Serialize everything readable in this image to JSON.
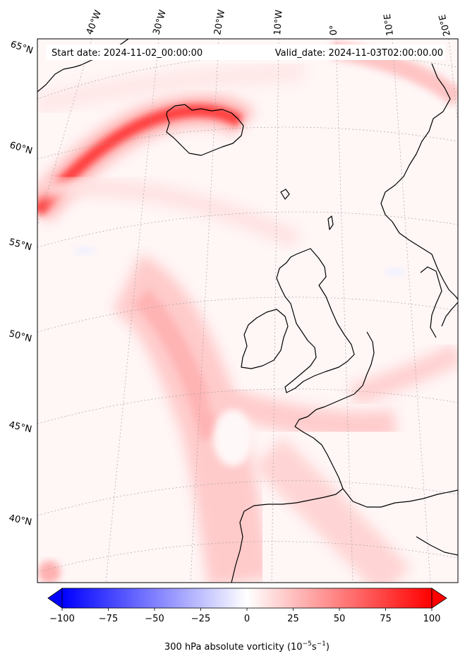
{
  "header": {
    "start_date": "Start date: 2024-11-02_00:00:00",
    "valid_date": "Valid_date: 2024-11-03T02:00:00.00"
  },
  "longitude_labels": [
    "40°W",
    "30°W",
    "20°W",
    "10°W",
    "0°",
    "10°E",
    "20°E"
  ],
  "latitude_labels": [
    "65°N",
    "60°N",
    "55°N",
    "50°N",
    "45°N",
    "40°N"
  ],
  "field": {
    "variable": "300 hPa absolute vorticity",
    "cmap": "bwr",
    "vmin": -100,
    "vmax": 100,
    "extend": "both"
  },
  "colorbar": {
    "ticks": [
      "−100",
      "−75",
      "−50",
      "−25",
      "0",
      "25",
      "50",
      "75",
      "100"
    ],
    "label_prefix": "300 hPa absolute vorticity (10",
    "label_exp1": "−5",
    "label_mid": "s",
    "label_exp2": "−1",
    "label_suffix": ")"
  },
  "colors": {
    "positive_max": "#ff0000",
    "negative_max": "#0000ff",
    "zero": "#ffffff",
    "coastline": "#000000"
  }
}
